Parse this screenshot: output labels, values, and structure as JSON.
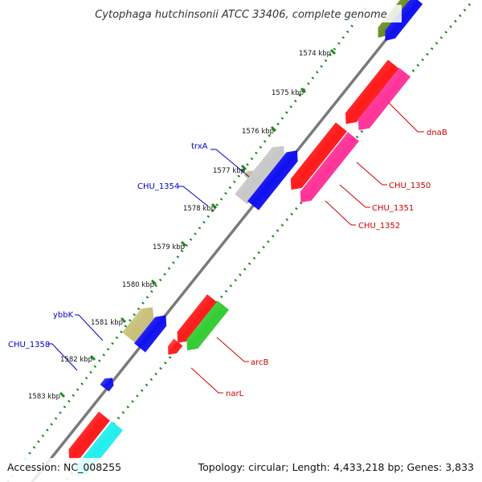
{
  "title": "Cytophaga hutchinsonii ATCC 33406, complete genome",
  "footer": {
    "accession": "Accession: NC_008255",
    "summary": "Topology: circular; Length: 4,433,218 bp; Genes: 3,833"
  },
  "ruler": {
    "labels": [
      "1574 kbp",
      "1575 kbp",
      "1576 kbp",
      "1577 kbp",
      "1578 kbp",
      "1579 kbp",
      "1580 kbp",
      "1581 kbp",
      "1582 kbp",
      "1583 kbp"
    ]
  },
  "gene_labels": [
    {
      "name": "trxA",
      "color": "#0000cc"
    },
    {
      "name": "CHU_1354",
      "color": "#0000cc"
    },
    {
      "name": "ybbK",
      "color": "#0000cc"
    },
    {
      "name": "CHU_1358",
      "color": "#0000cc"
    },
    {
      "name": "dnaB",
      "color": "#cc0000"
    },
    {
      "name": "CHU_1350",
      "color": "#cc0000"
    },
    {
      "name": "CHU_1351",
      "color": "#cc0000"
    },
    {
      "name": "CHU_1352",
      "color": "#cc0000"
    },
    {
      "name": "arcB",
      "color": "#cc0000"
    },
    {
      "name": "narL",
      "color": "#cc0000"
    }
  ],
  "colors": {
    "backbone": "#7a7a7a",
    "gc_dots": "#1f8a1f",
    "red": "#ff1a1a",
    "pink": "#ff3399",
    "blue": "#0f0ff0",
    "green": "#33cc33",
    "khaki": "#c8c07a",
    "gray": "#c8c8c8",
    "cyan": "#22eeee",
    "olive": "#6b8e23"
  }
}
